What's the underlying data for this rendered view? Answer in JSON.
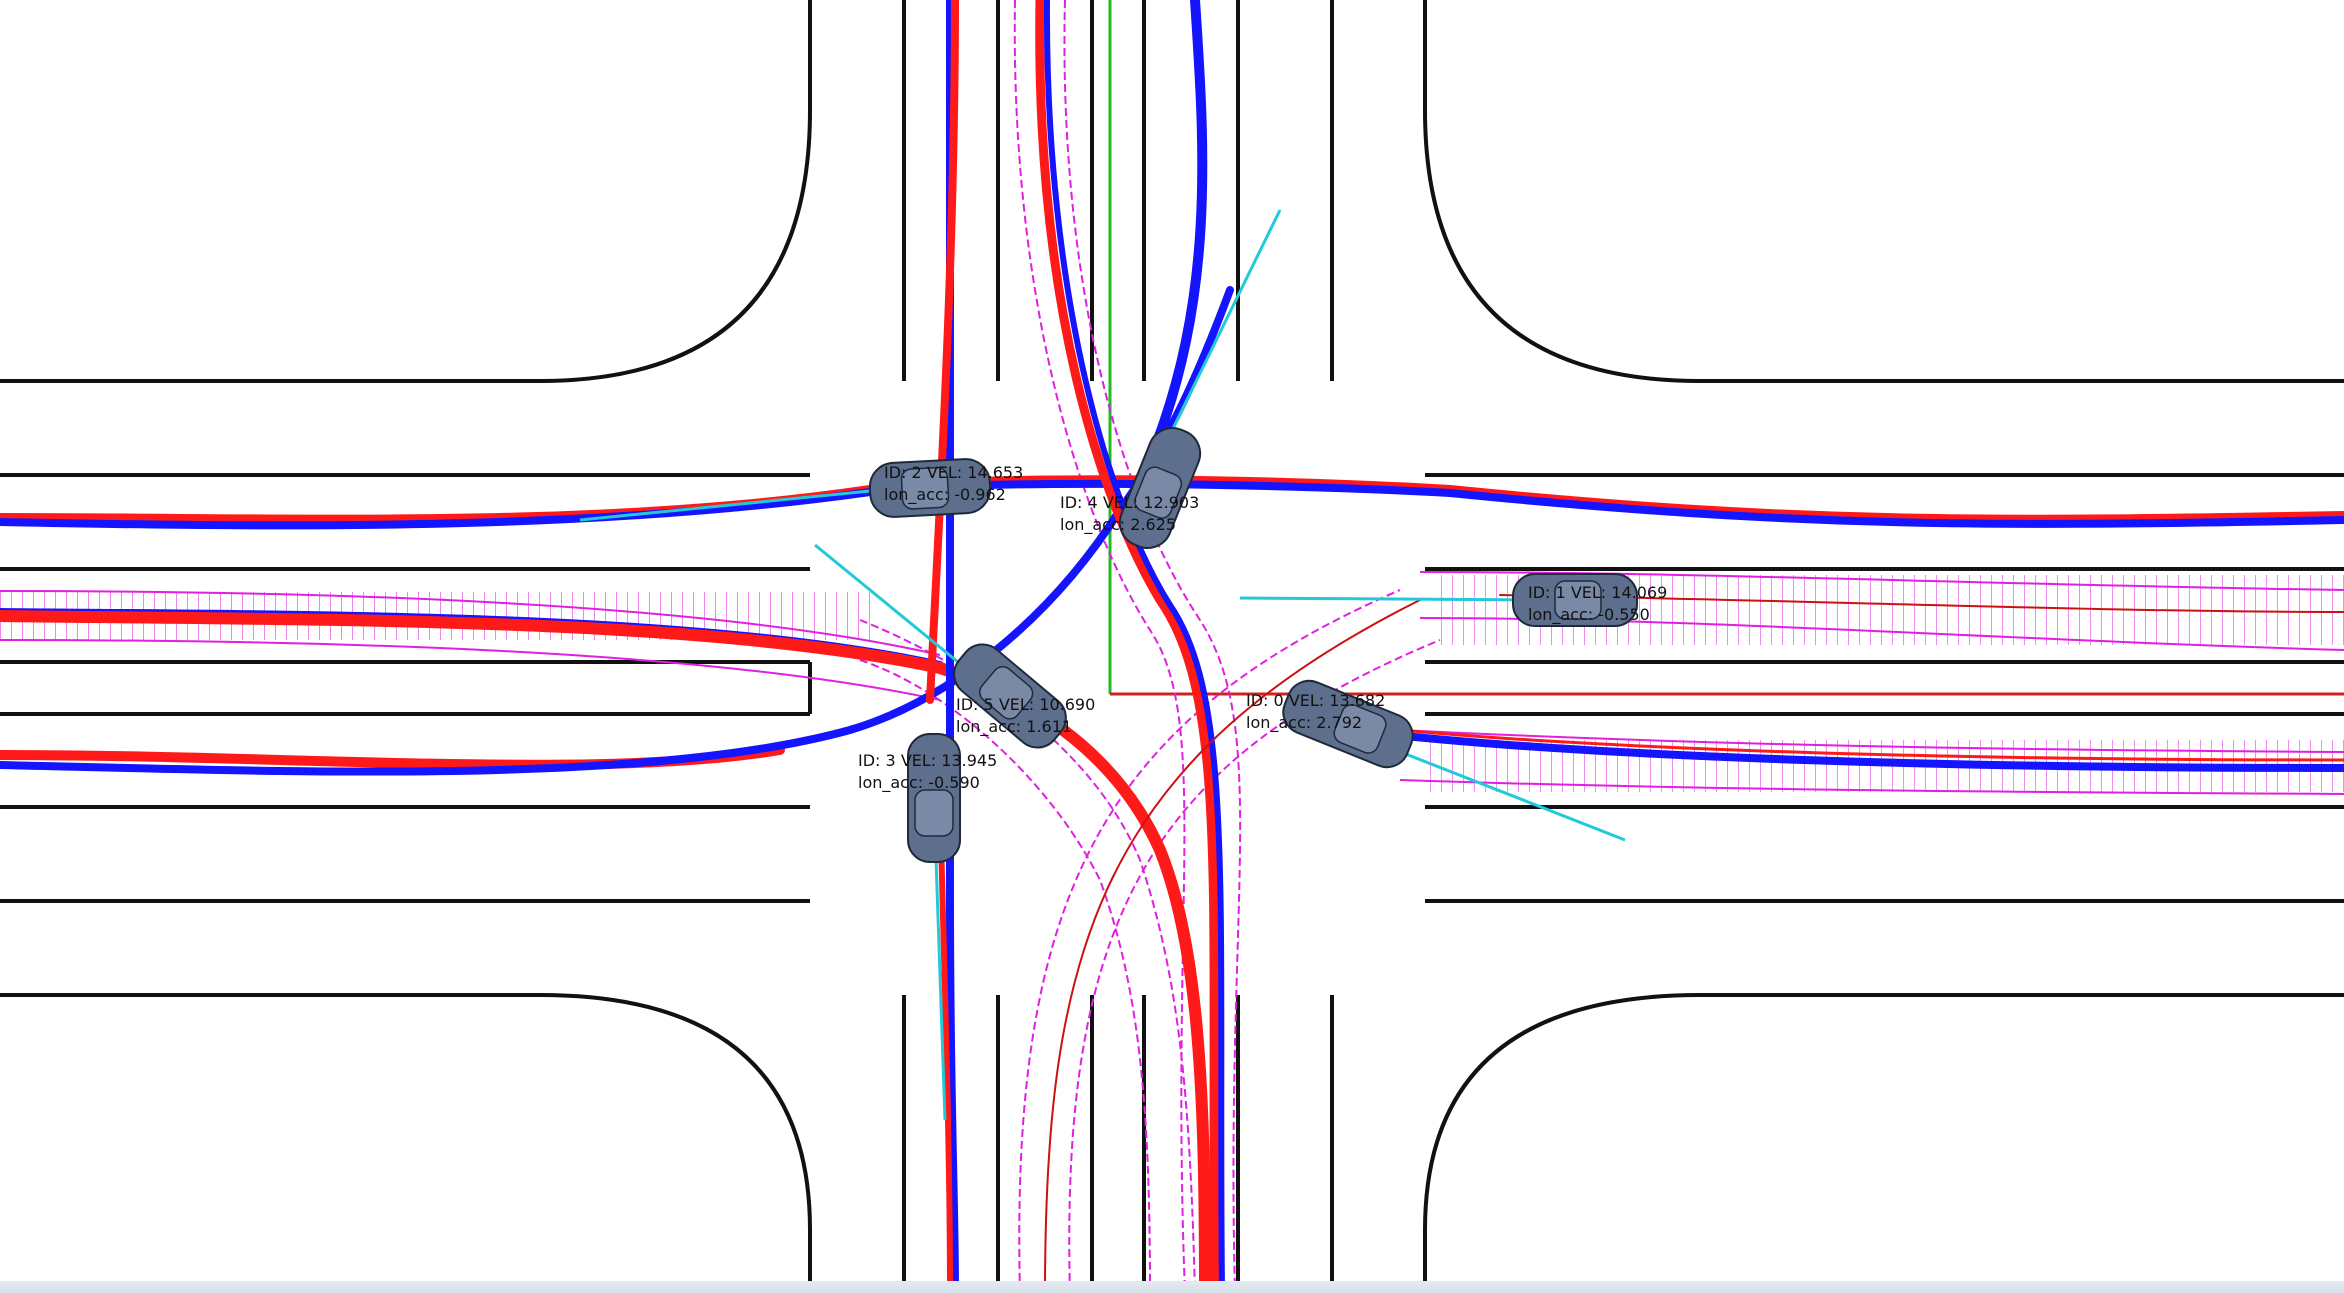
{
  "scene": {
    "colors": {
      "background": "#ffffff",
      "road_line": "#111111",
      "path_red": "#ff1a1a",
      "path_blue": "#1414ff",
      "corridor": "#e020e0",
      "heading_arrow": "#22c9d9",
      "car_body": "#5d6f8c",
      "car_outline": "#1e2a3a",
      "axis_x": "#cc2222",
      "axis_y": "#22bb22"
    },
    "vehicles": [
      {
        "id_label": "ID:",
        "id": "2",
        "vel_label": "VEL:",
        "vel": "14.653",
        "acc_label": "lon_acc:",
        "acc": "-0.962"
      },
      {
        "id_label": "ID:",
        "id": "4",
        "vel_label": "VEL:",
        "vel": "12.903",
        "acc_label": "lon_acc:",
        "acc": "2.625"
      },
      {
        "id_label": "ID:",
        "id": "1",
        "vel_label": "VEL:",
        "vel": "14.069",
        "acc_label": "lon_acc:",
        "acc": "-0.550"
      },
      {
        "id_label": "ID:",
        "id": "5",
        "vel_label": "VEL:",
        "vel": "10.690",
        "acc_label": "lon_acc:",
        "acc": "1.611"
      },
      {
        "id_label": "ID:",
        "id": "0",
        "vel_label": "VEL:",
        "vel": "13.682",
        "acc_label": "lon_acc:",
        "acc": "2.792"
      },
      {
        "id_label": "ID:",
        "id": "3",
        "vel_label": "VEL:",
        "vel": "13.945",
        "acc_label": "lon_acc:",
        "acc": "-0.590"
      }
    ]
  }
}
